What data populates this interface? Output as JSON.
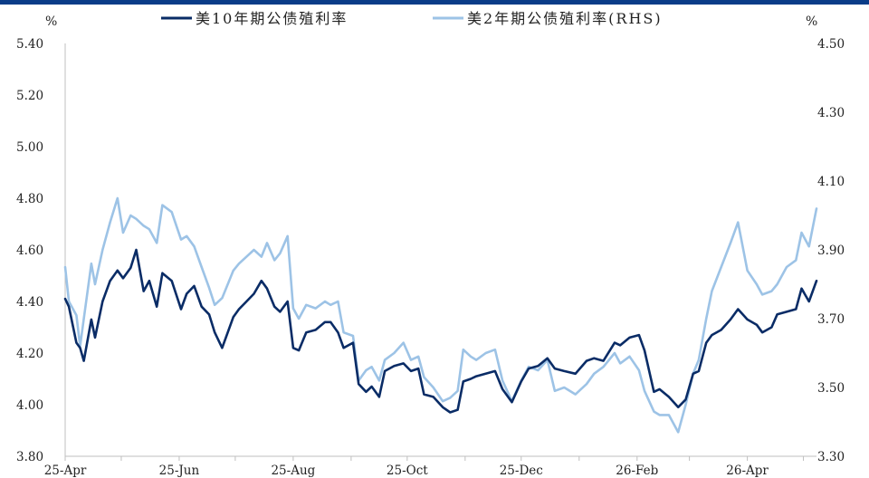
{
  "chart_data": {
    "type": "line",
    "title": "",
    "y_left_unit": "%",
    "y_right_unit": "%",
    "ylim_left": [
      3.8,
      5.4
    ],
    "ylim_right": [
      3.3,
      4.5
    ],
    "y_left_ticks": [
      "5.40",
      "5.20",
      "5.00",
      "4.80",
      "4.60",
      "4.40",
      "4.20",
      "4.00",
      "3.80"
    ],
    "y_right_ticks": [
      "4.50",
      "4.30",
      "4.10",
      "3.90",
      "3.70",
      "3.50",
      "3.30"
    ],
    "x_ticks": [
      "25-Apr",
      "25-Jun",
      "25-Aug",
      "25-Oct",
      "25-Dec",
      "26-Feb",
      "26-Apr"
    ],
    "x_range": [
      "2025-04-01",
      "2026-05-08"
    ],
    "legend_position": "top",
    "grid": false,
    "series": [
      {
        "name": "美10年期公债殖利率",
        "axis": "left",
        "color": "#0A2C66",
        "points": [
          [
            "2025-04-01",
            4.41
          ],
          [
            "2025-04-03",
            4.38
          ],
          [
            "2025-04-07",
            4.24
          ],
          [
            "2025-04-09",
            4.22
          ],
          [
            "2025-04-11",
            4.17
          ],
          [
            "2025-04-15",
            4.33
          ],
          [
            "2025-04-17",
            4.26
          ],
          [
            "2025-04-21",
            4.4
          ],
          [
            "2025-04-25",
            4.48
          ],
          [
            "2025-04-29",
            4.52
          ],
          [
            "2025-05-02",
            4.49
          ],
          [
            "2025-05-06",
            4.53
          ],
          [
            "2025-05-09",
            4.6
          ],
          [
            "2025-05-13",
            4.44
          ],
          [
            "2025-05-16",
            4.48
          ],
          [
            "2025-05-20",
            4.38
          ],
          [
            "2025-05-23",
            4.51
          ],
          [
            "2025-05-28",
            4.48
          ],
          [
            "2025-06-02",
            4.37
          ],
          [
            "2025-06-05",
            4.43
          ],
          [
            "2025-06-09",
            4.46
          ],
          [
            "2025-06-13",
            4.38
          ],
          [
            "2025-06-17",
            4.35
          ],
          [
            "2025-06-20",
            4.28
          ],
          [
            "2025-06-24",
            4.22
          ],
          [
            "2025-06-30",
            4.34
          ],
          [
            "2025-07-03",
            4.37
          ],
          [
            "2025-07-07",
            4.4
          ],
          [
            "2025-07-11",
            4.43
          ],
          [
            "2025-07-15",
            4.48
          ],
          [
            "2025-07-18",
            4.45
          ],
          [
            "2025-07-22",
            4.38
          ],
          [
            "2025-07-25",
            4.36
          ],
          [
            "2025-07-29",
            4.4
          ],
          [
            "2025-08-01",
            4.22
          ],
          [
            "2025-08-04",
            4.21
          ],
          [
            "2025-08-08",
            4.28
          ],
          [
            "2025-08-13",
            4.29
          ],
          [
            "2025-08-18",
            4.32
          ],
          [
            "2025-08-21",
            4.32
          ],
          [
            "2025-08-25",
            4.28
          ],
          [
            "2025-08-28",
            4.22
          ],
          [
            "2025-09-02",
            4.24
          ],
          [
            "2025-09-05",
            4.08
          ],
          [
            "2025-09-09",
            4.05
          ],
          [
            "2025-09-12",
            4.07
          ],
          [
            "2025-09-16",
            4.03
          ],
          [
            "2025-09-19",
            4.13
          ],
          [
            "2025-09-24",
            4.15
          ],
          [
            "2025-09-29",
            4.16
          ],
          [
            "2025-10-03",
            4.13
          ],
          [
            "2025-10-07",
            4.14
          ],
          [
            "2025-10-10",
            4.04
          ],
          [
            "2025-10-15",
            4.03
          ],
          [
            "2025-10-20",
            3.99
          ],
          [
            "2025-10-24",
            3.97
          ],
          [
            "2025-10-28",
            3.98
          ],
          [
            "2025-10-31",
            4.09
          ],
          [
            "2025-11-04",
            4.1
          ],
          [
            "2025-11-07",
            4.11
          ],
          [
            "2025-11-12",
            4.12
          ],
          [
            "2025-11-17",
            4.13
          ],
          [
            "2025-11-21",
            4.06
          ],
          [
            "2025-11-26",
            4.01
          ],
          [
            "2025-12-01",
            4.09
          ],
          [
            "2025-12-05",
            4.14
          ],
          [
            "2025-12-10",
            4.15
          ],
          [
            "2025-12-15",
            4.18
          ],
          [
            "2025-12-19",
            4.14
          ],
          [
            "2025-12-24",
            4.13
          ],
          [
            "2025-12-30",
            4.12
          ],
          [
            "2026-01-05",
            4.17
          ],
          [
            "2026-01-09",
            4.18
          ],
          [
            "2026-01-14",
            4.17
          ],
          [
            "2026-01-20",
            4.24
          ],
          [
            "2026-01-23",
            4.23
          ],
          [
            "2026-01-28",
            4.26
          ],
          [
            "2026-02-02",
            4.27
          ],
          [
            "2026-02-05",
            4.21
          ],
          [
            "2026-02-10",
            4.05
          ],
          [
            "2026-02-13",
            4.06
          ],
          [
            "2026-02-18",
            4.03
          ],
          [
            "2026-02-23",
            3.99
          ],
          [
            "2026-02-27",
            4.02
          ],
          [
            "2026-03-03",
            4.12
          ],
          [
            "2026-03-06",
            4.13
          ],
          [
            "2026-03-10",
            4.24
          ],
          [
            "2026-03-13",
            4.27
          ],
          [
            "2026-03-18",
            4.29
          ],
          [
            "2026-03-23",
            4.33
          ],
          [
            "2026-03-27",
            4.37
          ],
          [
            "2026-04-01",
            4.33
          ],
          [
            "2026-04-06",
            4.31
          ],
          [
            "2026-04-09",
            4.28
          ],
          [
            "2026-04-14",
            4.3
          ],
          [
            "2026-04-17",
            4.35
          ],
          [
            "2026-04-22",
            4.36
          ],
          [
            "2026-04-27",
            4.37
          ],
          [
            "2026-04-30",
            4.45
          ],
          [
            "2026-05-04",
            4.4
          ],
          [
            "2026-05-08",
            4.48
          ]
        ]
      },
      {
        "name": "美2年期公债殖利率(RHS)",
        "axis": "right",
        "color": "#9DC3E6",
        "points": [
          [
            "2025-04-01",
            3.85
          ],
          [
            "2025-04-03",
            3.75
          ],
          [
            "2025-04-07",
            3.71
          ],
          [
            "2025-04-09",
            3.62
          ],
          [
            "2025-04-11",
            3.7
          ],
          [
            "2025-04-15",
            3.86
          ],
          [
            "2025-04-17",
            3.8
          ],
          [
            "2025-04-21",
            3.9
          ],
          [
            "2025-04-25",
            3.98
          ],
          [
            "2025-04-29",
            4.05
          ],
          [
            "2025-05-02",
            3.95
          ],
          [
            "2025-05-06",
            4.0
          ],
          [
            "2025-05-09",
            3.99
          ],
          [
            "2025-05-13",
            3.97
          ],
          [
            "2025-05-16",
            3.96
          ],
          [
            "2025-05-20",
            3.92
          ],
          [
            "2025-05-23",
            4.03
          ],
          [
            "2025-05-28",
            4.01
          ],
          [
            "2025-06-02",
            3.93
          ],
          [
            "2025-06-05",
            3.94
          ],
          [
            "2025-06-09",
            3.91
          ],
          [
            "2025-06-13",
            3.85
          ],
          [
            "2025-06-17",
            3.79
          ],
          [
            "2025-06-20",
            3.74
          ],
          [
            "2025-06-24",
            3.76
          ],
          [
            "2025-06-30",
            3.84
          ],
          [
            "2025-07-03",
            3.86
          ],
          [
            "2025-07-07",
            3.88
          ],
          [
            "2025-07-11",
            3.9
          ],
          [
            "2025-07-15",
            3.88
          ],
          [
            "2025-07-18",
            3.92
          ],
          [
            "2025-07-22",
            3.87
          ],
          [
            "2025-07-25",
            3.89
          ],
          [
            "2025-07-29",
            3.94
          ],
          [
            "2025-08-01",
            3.73
          ],
          [
            "2025-08-04",
            3.7
          ],
          [
            "2025-08-08",
            3.74
          ],
          [
            "2025-08-13",
            3.73
          ],
          [
            "2025-08-18",
            3.75
          ],
          [
            "2025-08-21",
            3.74
          ],
          [
            "2025-08-25",
            3.75
          ],
          [
            "2025-08-28",
            3.66
          ],
          [
            "2025-09-02",
            3.65
          ],
          [
            "2025-09-05",
            3.52
          ],
          [
            "2025-09-09",
            3.55
          ],
          [
            "2025-09-12",
            3.56
          ],
          [
            "2025-09-16",
            3.52
          ],
          [
            "2025-09-19",
            3.58
          ],
          [
            "2025-09-24",
            3.6
          ],
          [
            "2025-09-29",
            3.63
          ],
          [
            "2025-10-03",
            3.58
          ],
          [
            "2025-10-07",
            3.59
          ],
          [
            "2025-10-10",
            3.53
          ],
          [
            "2025-10-15",
            3.5
          ],
          [
            "2025-10-20",
            3.46
          ],
          [
            "2025-10-24",
            3.47
          ],
          [
            "2025-10-28",
            3.49
          ],
          [
            "2025-10-31",
            3.61
          ],
          [
            "2025-11-04",
            3.59
          ],
          [
            "2025-11-07",
            3.58
          ],
          [
            "2025-11-12",
            3.6
          ],
          [
            "2025-11-17",
            3.61
          ],
          [
            "2025-11-21",
            3.52
          ],
          [
            "2025-11-26",
            3.46
          ],
          [
            "2025-12-01",
            3.52
          ],
          [
            "2025-12-05",
            3.56
          ],
          [
            "2025-12-10",
            3.55
          ],
          [
            "2025-12-15",
            3.58
          ],
          [
            "2025-12-19",
            3.49
          ],
          [
            "2025-12-24",
            3.5
          ],
          [
            "2025-12-30",
            3.48
          ],
          [
            "2026-01-05",
            3.51
          ],
          [
            "2026-01-09",
            3.54
          ],
          [
            "2026-01-14",
            3.56
          ],
          [
            "2026-01-20",
            3.6
          ],
          [
            "2026-01-23",
            3.57
          ],
          [
            "2026-01-28",
            3.59
          ],
          [
            "2026-02-02",
            3.55
          ],
          [
            "2026-02-05",
            3.49
          ],
          [
            "2026-02-10",
            3.43
          ],
          [
            "2026-02-13",
            3.42
          ],
          [
            "2026-02-18",
            3.42
          ],
          [
            "2026-02-23",
            3.37
          ],
          [
            "2026-02-27",
            3.45
          ],
          [
            "2026-03-03",
            3.54
          ],
          [
            "2026-03-06",
            3.58
          ],
          [
            "2026-03-10",
            3.7
          ],
          [
            "2026-03-13",
            3.78
          ],
          [
            "2026-03-18",
            3.85
          ],
          [
            "2026-03-23",
            3.92
          ],
          [
            "2026-03-27",
            3.98
          ],
          [
            "2026-04-01",
            3.84
          ],
          [
            "2026-04-06",
            3.8
          ],
          [
            "2026-04-09",
            3.77
          ],
          [
            "2026-04-14",
            3.78
          ],
          [
            "2026-04-17",
            3.8
          ],
          [
            "2026-04-22",
            3.85
          ],
          [
            "2026-04-27",
            3.87
          ],
          [
            "2026-04-30",
            3.95
          ],
          [
            "2026-05-04",
            3.91
          ],
          [
            "2026-05-08",
            4.02
          ]
        ]
      }
    ]
  }
}
